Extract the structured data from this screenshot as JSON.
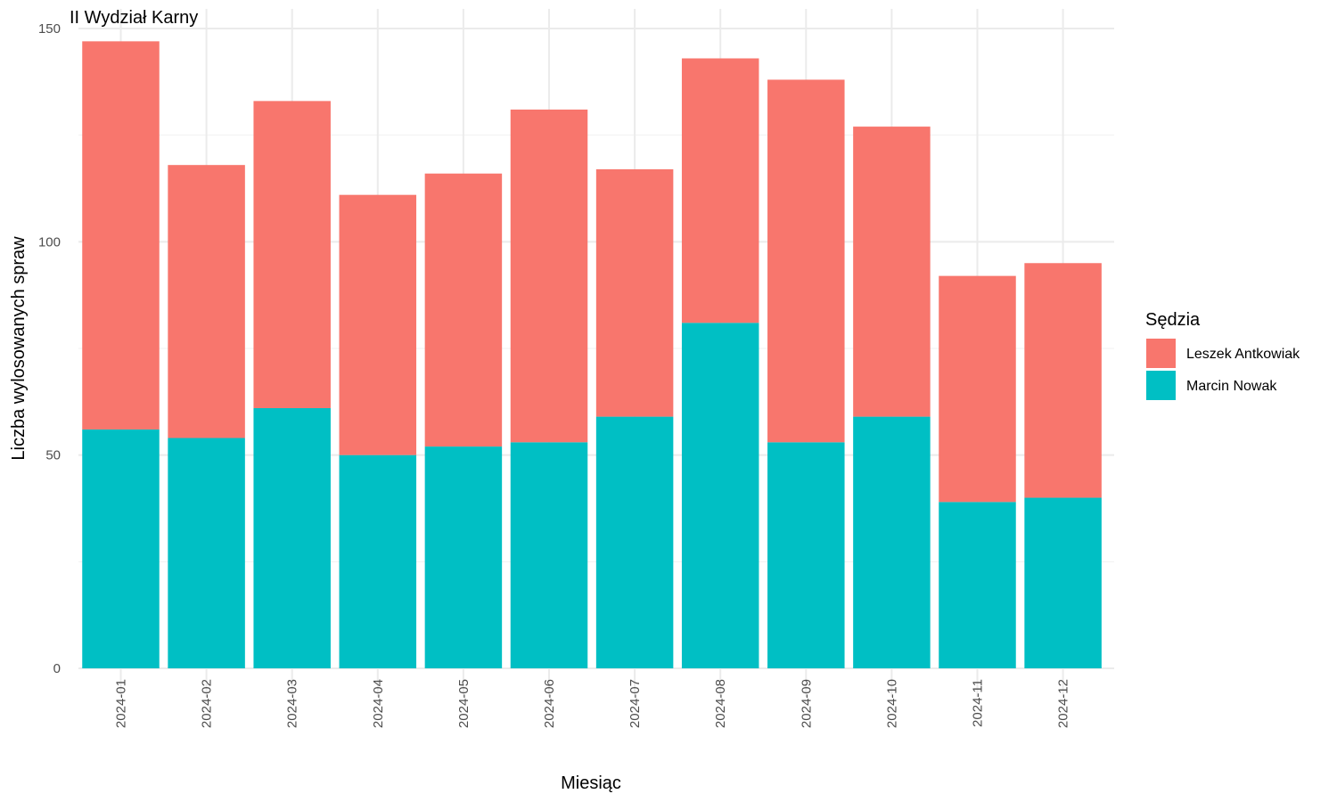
{
  "chart_data": {
    "type": "bar",
    "stacked": true,
    "title": "II Wydział Karny",
    "xlabel": "Miesiąc",
    "ylabel": "Liczba wylosowanych spraw",
    "ylim": [
      0,
      150
    ],
    "yticks": [
      "0",
      "50",
      "100",
      "150"
    ],
    "grid": true,
    "legend_position": "right",
    "categories": [
      "2024-01",
      "2024-02",
      "2024-03",
      "2024-04",
      "2024-05",
      "2024-06",
      "2024-07",
      "2024-08",
      "2024-09",
      "2024-10",
      "2024-11",
      "2024-12"
    ],
    "series": [
      {
        "name": "Marcin Nowak",
        "color": "#00BFC4",
        "values": [
          56,
          54,
          61,
          50,
          52,
          53,
          59,
          81,
          53,
          59,
          39,
          40
        ]
      },
      {
        "name": "Leszek Antkowiak",
        "color": "#F8766D",
        "values": [
          91,
          64,
          72,
          61,
          64,
          78,
          58,
          62,
          85,
          68,
          53,
          55
        ]
      }
    ],
    "legend": {
      "title": "Sędzia",
      "order": [
        "Leszek Antkowiak",
        "Marcin Nowak"
      ]
    }
  }
}
